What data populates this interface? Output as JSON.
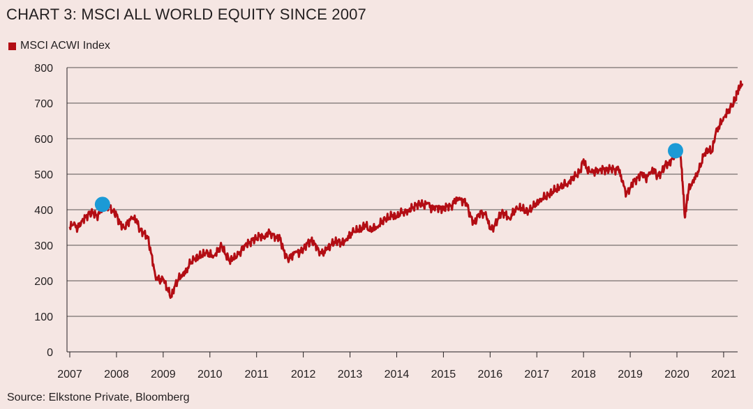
{
  "title": "CHART 3: MSCI ALL WORLD EQUITY SINCE 2007",
  "source": "Source: Elkstone Private, Bloomberg",
  "colors": {
    "background": "#f5e6e3",
    "series": "#b30d14",
    "marker": "#1b9ad6",
    "grid": "#231f20"
  },
  "chart_data": {
    "type": "line",
    "title": "CHART 3: MSCI ALL WORLD EQUITY SINCE 2007",
    "xlabel": "",
    "ylabel": "",
    "xlim": [
      2007.0,
      2021.3
    ],
    "ylim": [
      0,
      800
    ],
    "yticks": [
      0,
      100,
      200,
      300,
      400,
      500,
      600,
      700,
      800
    ],
    "xticks": [
      "2007",
      "2008",
      "2009",
      "2010",
      "2011",
      "2012",
      "2013",
      "2014",
      "2015",
      "2016",
      "2017",
      "2018",
      "2019",
      "2020",
      "2021"
    ],
    "grid": "horizontal",
    "legend": "top-left",
    "series": [
      {
        "name": "MSCI ACWI Index",
        "color": "#b30d14",
        "points": [
          [
            2007.0,
            352
          ],
          [
            2007.08,
            358
          ],
          [
            2007.17,
            348
          ],
          [
            2007.25,
            368
          ],
          [
            2007.33,
            378
          ],
          [
            2007.42,
            388
          ],
          [
            2007.5,
            393
          ],
          [
            2007.58,
            382
          ],
          [
            2007.67,
            395
          ],
          [
            2007.75,
            410
          ],
          [
            2007.83,
            412
          ],
          [
            2007.92,
            398
          ],
          [
            2008.0,
            385
          ],
          [
            2008.08,
            360
          ],
          [
            2008.17,
            350
          ],
          [
            2008.25,
            365
          ],
          [
            2008.33,
            375
          ],
          [
            2008.42,
            372
          ],
          [
            2008.5,
            345
          ],
          [
            2008.58,
            335
          ],
          [
            2008.67,
            320
          ],
          [
            2008.75,
            275
          ],
          [
            2008.83,
            215
          ],
          [
            2008.92,
            200
          ],
          [
            2009.0,
            205
          ],
          [
            2009.08,
            180
          ],
          [
            2009.17,
            155
          ],
          [
            2009.25,
            185
          ],
          [
            2009.33,
            205
          ],
          [
            2009.42,
            220
          ],
          [
            2009.5,
            230
          ],
          [
            2009.58,
            250
          ],
          [
            2009.67,
            260
          ],
          [
            2009.75,
            268
          ],
          [
            2009.83,
            272
          ],
          [
            2009.92,
            278
          ],
          [
            2010.0,
            275
          ],
          [
            2010.08,
            270
          ],
          [
            2010.17,
            285
          ],
          [
            2010.25,
            298
          ],
          [
            2010.33,
            275
          ],
          [
            2010.42,
            258
          ],
          [
            2010.5,
            262
          ],
          [
            2010.58,
            268
          ],
          [
            2010.67,
            285
          ],
          [
            2010.75,
            302
          ],
          [
            2010.83,
            305
          ],
          [
            2010.92,
            315
          ],
          [
            2011.0,
            320
          ],
          [
            2011.08,
            328
          ],
          [
            2011.17,
            318
          ],
          [
            2011.25,
            335
          ],
          [
            2011.33,
            332
          ],
          [
            2011.42,
            322
          ],
          [
            2011.5,
            320
          ],
          [
            2011.58,
            285
          ],
          [
            2011.67,
            262
          ],
          [
            2011.75,
            268
          ],
          [
            2011.83,
            280
          ],
          [
            2011.92,
            278
          ],
          [
            2012.0,
            290
          ],
          [
            2012.08,
            305
          ],
          [
            2012.17,
            312
          ],
          [
            2012.25,
            305
          ],
          [
            2012.33,
            285
          ],
          [
            2012.42,
            275
          ],
          [
            2012.5,
            288
          ],
          [
            2012.58,
            300
          ],
          [
            2012.67,
            310
          ],
          [
            2012.75,
            310
          ],
          [
            2012.83,
            305
          ],
          [
            2012.92,
            318
          ],
          [
            2013.0,
            330
          ],
          [
            2013.08,
            338
          ],
          [
            2013.17,
            342
          ],
          [
            2013.25,
            348
          ],
          [
            2013.33,
            358
          ],
          [
            2013.42,
            340
          ],
          [
            2013.5,
            350
          ],
          [
            2013.58,
            352
          ],
          [
            2013.67,
            365
          ],
          [
            2013.75,
            372
          ],
          [
            2013.83,
            378
          ],
          [
            2013.92,
            385
          ],
          [
            2014.0,
            378
          ],
          [
            2014.08,
            390
          ],
          [
            2014.17,
            395
          ],
          [
            2014.25,
            398
          ],
          [
            2014.33,
            405
          ],
          [
            2014.42,
            412
          ],
          [
            2014.5,
            418
          ],
          [
            2014.58,
            412
          ],
          [
            2014.67,
            418
          ],
          [
            2014.75,
            400
          ],
          [
            2014.83,
            410
          ],
          [
            2014.92,
            405
          ],
          [
            2015.0,
            400
          ],
          [
            2015.08,
            412
          ],
          [
            2015.17,
            410
          ],
          [
            2015.25,
            425
          ],
          [
            2015.33,
            428
          ],
          [
            2015.42,
            425
          ],
          [
            2015.5,
            418
          ],
          [
            2015.58,
            380
          ],
          [
            2015.67,
            362
          ],
          [
            2015.75,
            388
          ],
          [
            2015.83,
            392
          ],
          [
            2015.92,
            382
          ],
          [
            2016.0,
            345
          ],
          [
            2016.08,
            352
          ],
          [
            2016.17,
            375
          ],
          [
            2016.25,
            390
          ],
          [
            2016.33,
            388
          ],
          [
            2016.42,
            375
          ],
          [
            2016.5,
            395
          ],
          [
            2016.58,
            402
          ],
          [
            2016.67,
            405
          ],
          [
            2016.75,
            398
          ],
          [
            2016.83,
            395
          ],
          [
            2016.92,
            408
          ],
          [
            2017.0,
            420
          ],
          [
            2017.08,
            430
          ],
          [
            2017.17,
            435
          ],
          [
            2017.25,
            440
          ],
          [
            2017.33,
            450
          ],
          [
            2017.42,
            458
          ],
          [
            2017.5,
            462
          ],
          [
            2017.58,
            470
          ],
          [
            2017.67,
            475
          ],
          [
            2017.75,
            488
          ],
          [
            2017.83,
            495
          ],
          [
            2017.92,
            505
          ],
          [
            2018.0,
            542
          ],
          [
            2018.08,
            510
          ],
          [
            2018.17,
            505
          ],
          [
            2018.25,
            508
          ],
          [
            2018.33,
            512
          ],
          [
            2018.42,
            515
          ],
          [
            2018.5,
            510
          ],
          [
            2018.58,
            518
          ],
          [
            2018.67,
            512
          ],
          [
            2018.75,
            515
          ],
          [
            2018.83,
            478
          ],
          [
            2018.92,
            445
          ],
          [
            2019.0,
            462
          ],
          [
            2019.08,
            480
          ],
          [
            2019.17,
            490
          ],
          [
            2019.25,
            505
          ],
          [
            2019.33,
            488
          ],
          [
            2019.42,
            500
          ],
          [
            2019.5,
            512
          ],
          [
            2019.58,
            495
          ],
          [
            2019.67,
            505
          ],
          [
            2019.75,
            525
          ],
          [
            2019.83,
            530
          ],
          [
            2019.92,
            550
          ],
          [
            2020.0,
            560
          ],
          [
            2020.08,
            548
          ],
          [
            2020.12,
            480
          ],
          [
            2020.17,
            378
          ],
          [
            2020.21,
            420
          ],
          [
            2020.25,
            455
          ],
          [
            2020.33,
            478
          ],
          [
            2020.42,
            500
          ],
          [
            2020.5,
            520
          ],
          [
            2020.58,
            555
          ],
          [
            2020.67,
            570
          ],
          [
            2020.75,
            562
          ],
          [
            2020.83,
            615
          ],
          [
            2020.92,
            640
          ],
          [
            2021.0,
            660
          ],
          [
            2021.08,
            675
          ],
          [
            2021.17,
            690
          ],
          [
            2021.25,
            710
          ],
          [
            2021.3,
            735
          ],
          [
            2021.35,
            745
          ],
          [
            2021.4,
            755
          ]
        ]
      }
    ],
    "markers": [
      {
        "x": 2007.7,
        "y": 415,
        "color": "#1b9ad6"
      },
      {
        "x": 2019.97,
        "y": 566,
        "color": "#1b9ad6"
      }
    ]
  }
}
